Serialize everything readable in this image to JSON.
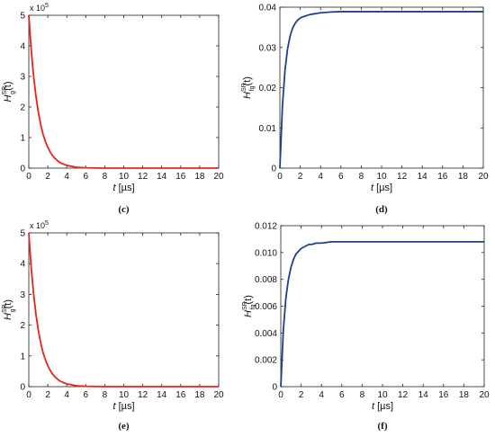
{
  "chart_data": [
    {
      "type": "line",
      "panel_label": "(c)",
      "xlabel_var": "t",
      "xlabel_unit": "[µs]",
      "ylabel_base": "H",
      "ylabel_sup": "SR",
      "ylabel_sub": "g",
      "ylabel_arg": "(t)",
      "xlim": [
        0,
        20
      ],
      "ylim": [
        0,
        5
      ],
      "xticks": [
        "0",
        "2",
        "4",
        "6",
        "8",
        "10",
        "12",
        "14",
        "16",
        "18",
        "20"
      ],
      "yticks": [
        "0",
        "1",
        "2",
        "3",
        "4",
        "5"
      ],
      "y_multiplier": "x 10",
      "y_exponent": "5",
      "grid": false,
      "series": [
        {
          "color": "#e8231f",
          "x": [
            0,
            0.25,
            0.5,
            0.75,
            1,
            1.25,
            1.5,
            1.75,
            2,
            2.25,
            2.5,
            2.75,
            3,
            3.25,
            3.5,
            4,
            5,
            6,
            8,
            10,
            12,
            14,
            16,
            18,
            20
          ],
          "y": [
            5,
            3.89,
            3.03,
            2.36,
            1.84,
            1.43,
            1.11,
            0.87,
            0.68,
            0.53,
            0.41,
            0.32,
            0.25,
            0.19,
            0.15,
            0.09,
            0.03,
            0.01,
            0,
            0,
            0,
            0,
            0,
            0,
            0
          ]
        }
      ]
    },
    {
      "type": "line",
      "panel_label": "(d)",
      "xlabel_var": "t",
      "xlabel_unit": "[µs]",
      "ylabel_base": "H",
      "ylabel_sup": "SR",
      "ylabel_sub": "fg",
      "ylabel_arg": "(t)",
      "xlim": [
        0,
        20
      ],
      "ylim": [
        0,
        0.04
      ],
      "xticks": [
        "0",
        "2",
        "4",
        "6",
        "8",
        "10",
        "12",
        "14",
        "16",
        "18",
        "20"
      ],
      "yticks": [
        "0",
        "0.01",
        "0.02",
        "0.03",
        "0.04"
      ],
      "grid": false,
      "series": [
        {
          "color": "#1f3f8f",
          "x": [
            0,
            0.25,
            0.5,
            0.75,
            1,
            1.25,
            1.5,
            1.75,
            2,
            2.25,
            2.5,
            2.75,
            3,
            3.5,
            4,
            5,
            6,
            8,
            10,
            12,
            14,
            16,
            18,
            20
          ],
          "y": [
            0,
            0.0155,
            0.0243,
            0.0296,
            0.0328,
            0.0348,
            0.036,
            0.0368,
            0.0373,
            0.0376,
            0.0378,
            0.038,
            0.0382,
            0.0384,
            0.0386,
            0.0388,
            0.0389,
            0.0389,
            0.0389,
            0.0389,
            0.0389,
            0.0389,
            0.0389,
            0.0389
          ]
        }
      ]
    },
    {
      "type": "line",
      "panel_label": "(e)",
      "xlabel_var": "t",
      "xlabel_unit": "[µs]",
      "ylabel_base": "H",
      "ylabel_sup": "SR",
      "ylabel_sub": "g",
      "ylabel_arg": "(t)",
      "xlim": [
        0,
        20
      ],
      "ylim": [
        0,
        5
      ],
      "xticks": [
        "0",
        "2",
        "4",
        "6",
        "8",
        "10",
        "12",
        "14",
        "16",
        "18",
        "20"
      ],
      "yticks": [
        "0",
        "1",
        "2",
        "3",
        "4",
        "5"
      ],
      "y_multiplier": "x 10",
      "y_exponent": "5",
      "grid": false,
      "series": [
        {
          "color": "#e8231f",
          "x": [
            0,
            0.25,
            0.5,
            0.75,
            1,
            1.25,
            1.5,
            1.75,
            2,
            2.25,
            2.5,
            2.75,
            3,
            3.25,
            3.5,
            4,
            5,
            6,
            8,
            10,
            12,
            14,
            16,
            18,
            20
          ],
          "y": [
            5,
            3.89,
            3.03,
            2.36,
            1.84,
            1.43,
            1.11,
            0.87,
            0.68,
            0.53,
            0.41,
            0.32,
            0.25,
            0.19,
            0.15,
            0.09,
            0.03,
            0.01,
            0,
            0,
            0,
            0,
            0,
            0,
            0
          ]
        }
      ]
    },
    {
      "type": "line",
      "panel_label": "(f)",
      "xlabel_var": "t",
      "xlabel_unit": "[µs]",
      "ylabel_base": "H",
      "ylabel_sup": "SR",
      "ylabel_sub": "fg",
      "ylabel_arg": "(t)",
      "xlim": [
        0,
        20
      ],
      "ylim": [
        0,
        0.012
      ],
      "xticks": [
        "0",
        "2",
        "4",
        "6",
        "8",
        "10",
        "12",
        "14",
        "16",
        "18",
        "20"
      ],
      "yticks": [
        "0",
        "0.002",
        "0.004",
        "0.006",
        "0.008",
        "0.010",
        "0.012"
      ],
      "grid": false,
      "series": [
        {
          "color": "#1f3f8f",
          "x": [
            0,
            0.25,
            0.5,
            0.75,
            1,
            1.25,
            1.5,
            1.75,
            2,
            2.25,
            2.5,
            2.75,
            3,
            3.5,
            4,
            5,
            6,
            8,
            10,
            12,
            14,
            16,
            18,
            20
          ],
          "y": [
            0,
            0.0042,
            0.0066,
            0.008,
            0.0089,
            0.0095,
            0.0099,
            0.0101,
            0.0103,
            0.0104,
            0.0105,
            0.0106,
            0.0106,
            0.0107,
            0.0107,
            0.0108,
            0.0108,
            0.0108,
            0.0108,
            0.0108,
            0.0108,
            0.0108,
            0.0108,
            0.0108
          ]
        }
      ]
    }
  ]
}
